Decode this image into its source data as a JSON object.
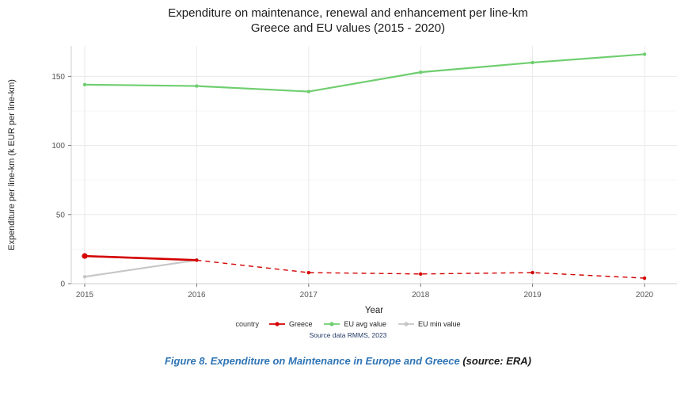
{
  "chart_data": {
    "type": "line",
    "title_line1": "Expenditure on maintenance, renewal and enhancement per line-km",
    "title_line2": "Greece and EU values (2015 - 2020)",
    "xlabel": "Year",
    "ylabel": "Expenditure per line-km (k EUR per line-km)",
    "x": [
      2015,
      2016,
      2017,
      2018,
      2019,
      2020
    ],
    "yticks": [
      0,
      50,
      100,
      150
    ],
    "ylim": [
      0,
      172
    ],
    "grid_color": "#e9e9e9",
    "minor_grid_color": "#f4f4f4",
    "axis_color": "#cfcfcf",
    "tick_label_color": "#555555",
    "legend_title": "country",
    "source_note": "Source data RMMS, 2023",
    "series": [
      {
        "name": "EU min value",
        "color": "#c6c6c6",
        "values": [
          5,
          17,
          null,
          null,
          null,
          null
        ],
        "line_width": 2.2
      },
      {
        "name": "EU avg value",
        "color": "#6fce6f",
        "values": [
          144,
          143,
          139,
          153,
          160,
          166
        ],
        "line_width": 2.2
      },
      {
        "name": "Greece",
        "color": "#d40000",
        "values": [
          20,
          17,
          8,
          7,
          8,
          4
        ],
        "line_width": 2.6,
        "dash_width": 1.4,
        "dash_from_index": 1,
        "first_point_radius": 3.6
      }
    ],
    "legend_order": [
      "Greece",
      "EU avg value",
      "EU min value"
    ]
  },
  "figure": {
    "caption_main": "Figure 8. Expenditure on Maintenance in Europe and Greece ",
    "caption_source": "(source: ERA)"
  }
}
